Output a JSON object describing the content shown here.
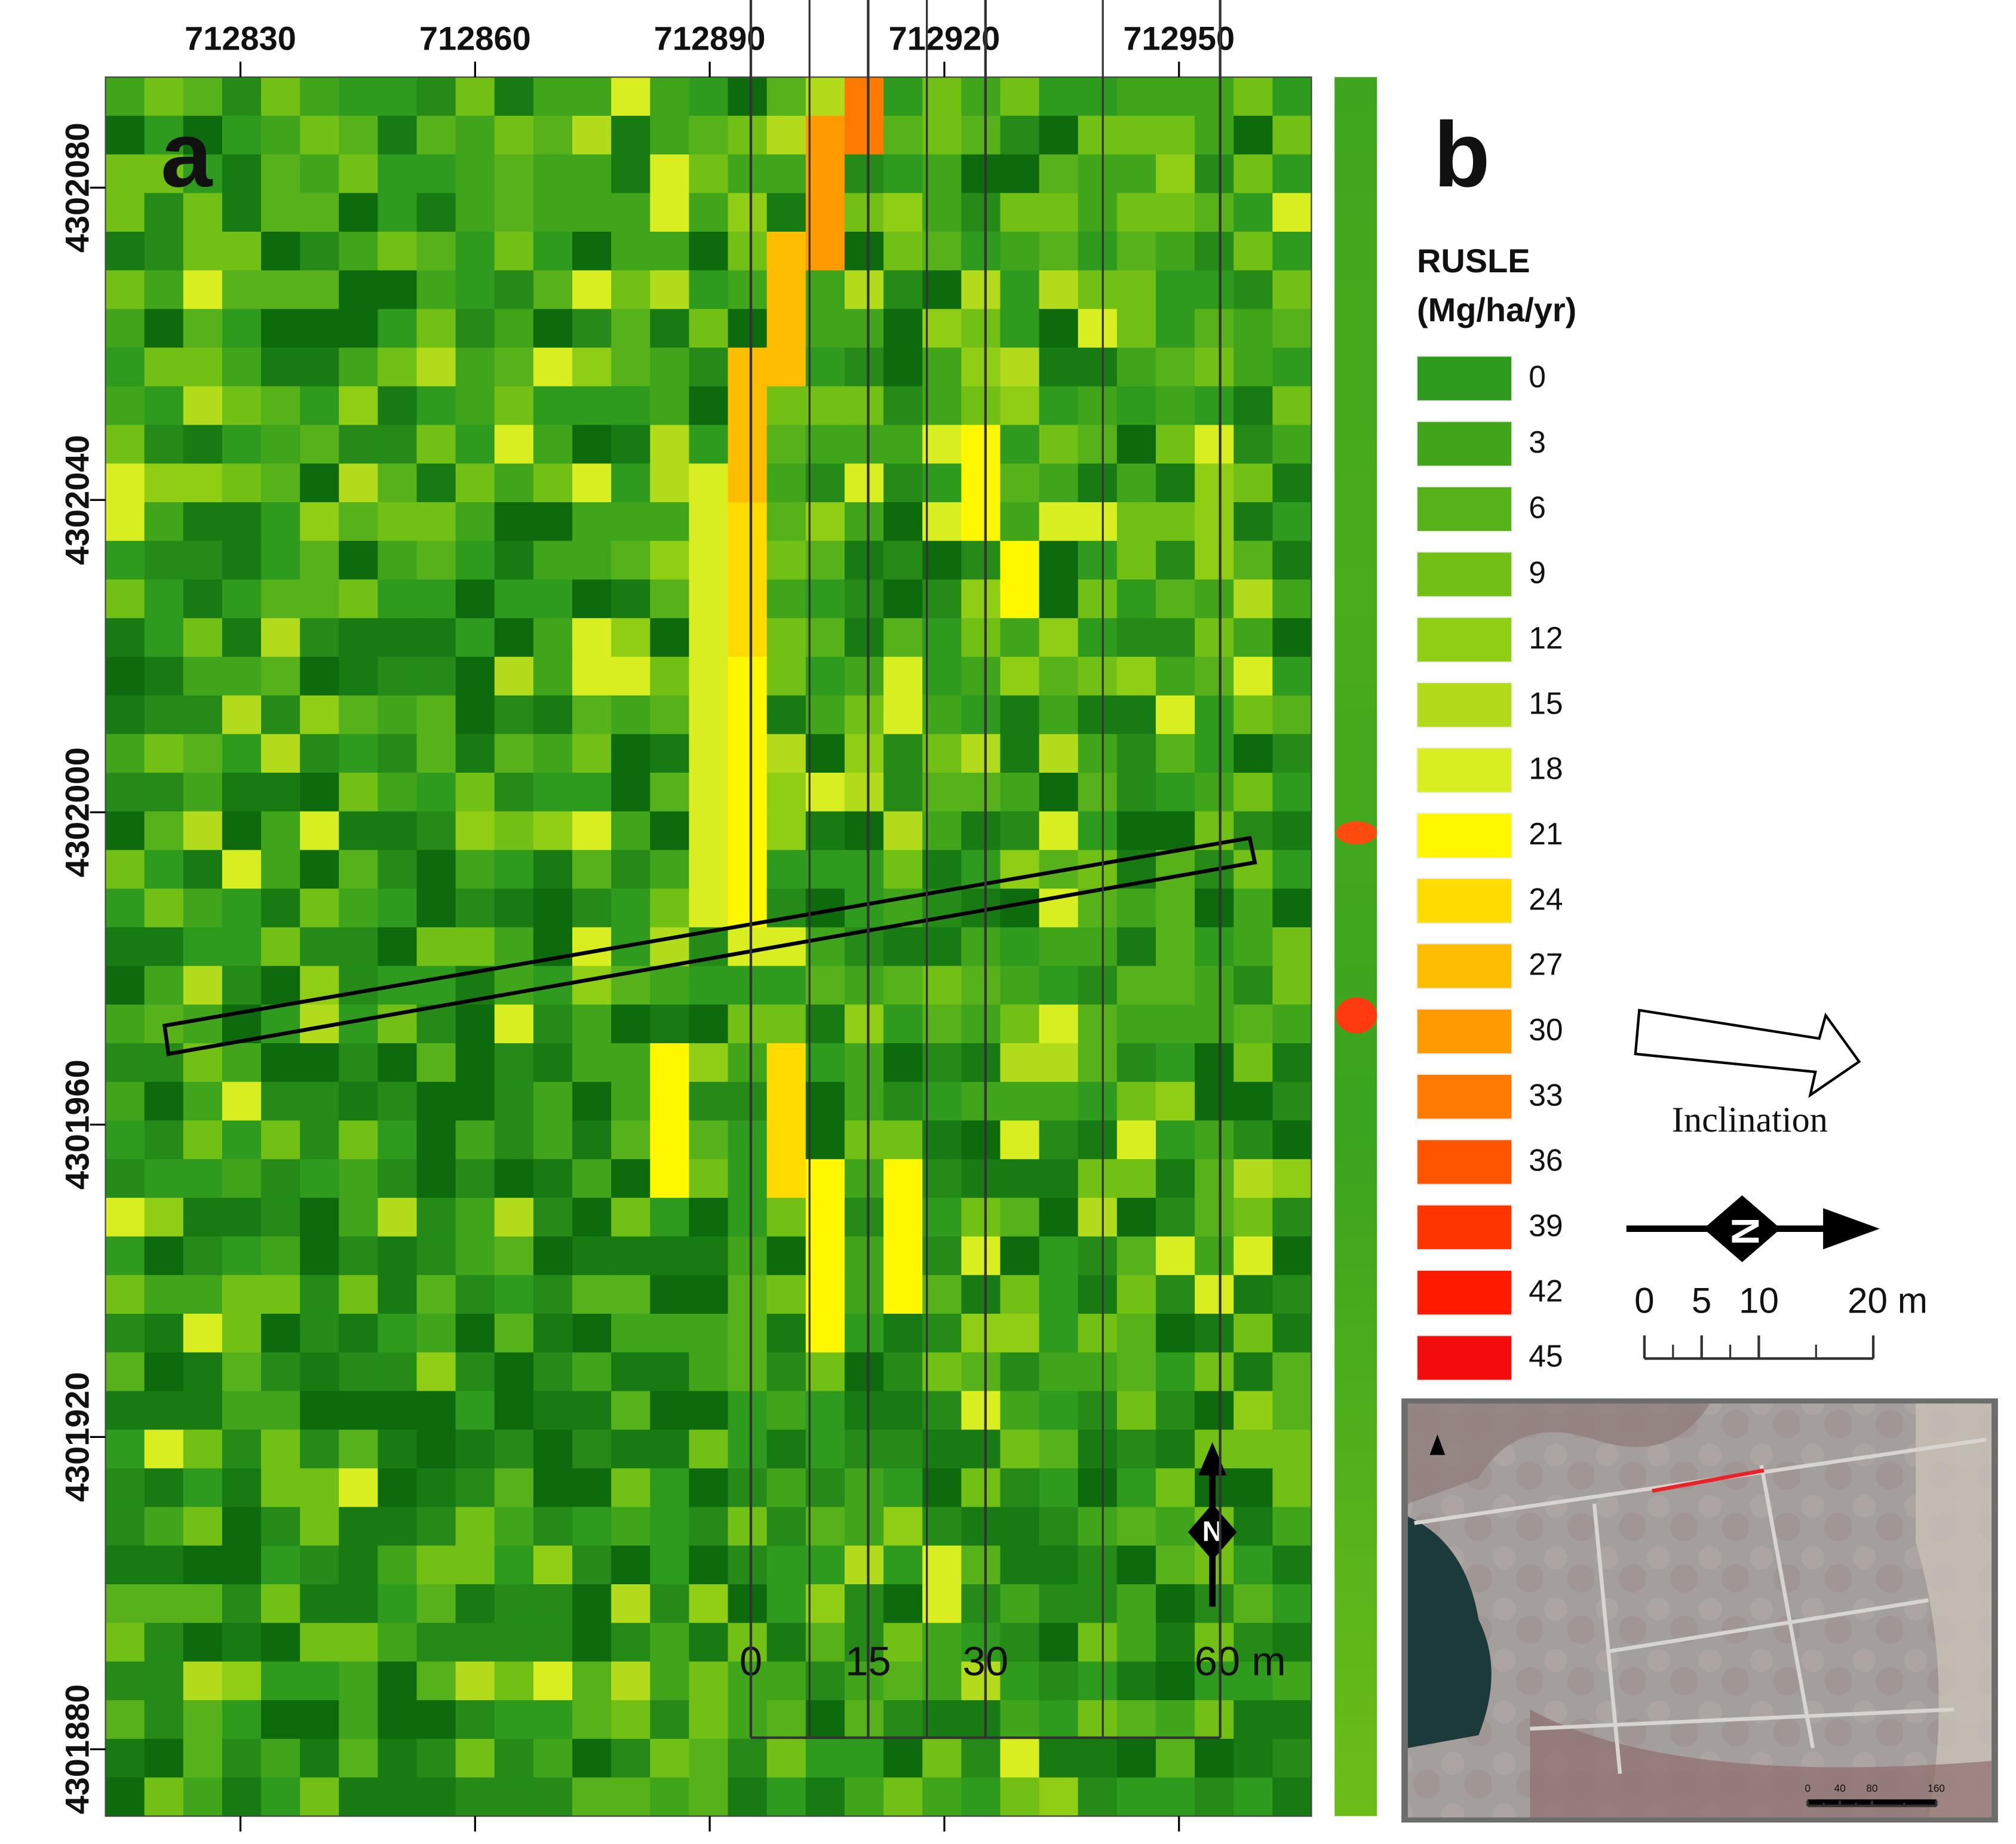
{
  "panel_a": {
    "label": "a",
    "x_ticks": [
      712830,
      712860,
      712890,
      712920,
      712950
    ],
    "y_ticks": [
      4302080,
      4302040,
      4302000,
      4301960,
      4301920,
      4301880
    ],
    "scale_bar": [
      0,
      15,
      30,
      {
        "value": 60,
        "label": "60 m"
      }
    ],
    "north_label": "N"
  },
  "panel_b": {
    "label": "b",
    "legend_title": "RUSLE",
    "legend_unit": "(Mg/ha/yr)",
    "legend": [
      {
        "value": 0,
        "color": "#2e9a1e"
      },
      {
        "value": 3,
        "color": "#40a51b"
      },
      {
        "value": 6,
        "color": "#57b11a"
      },
      {
        "value": 9,
        "color": "#72bf16"
      },
      {
        "value": 12,
        "color": "#90cd15"
      },
      {
        "value": 15,
        "color": "#b2dc1b"
      },
      {
        "value": 18,
        "color": "#d8ee20"
      },
      {
        "value": 21,
        "color": "#fff700"
      },
      {
        "value": 24,
        "color": "#ffdb00"
      },
      {
        "value": 27,
        "color": "#ffbd00"
      },
      {
        "value": 30,
        "color": "#ff9a00"
      },
      {
        "value": 33,
        "color": "#ff7a00"
      },
      {
        "value": 36,
        "color": "#ff5500"
      },
      {
        "value": 39,
        "color": "#ff3500"
      },
      {
        "value": 42,
        "color": "#ff1a00"
      },
      {
        "value": 45,
        "color": "#f20c0c"
      }
    ],
    "inclination": "Inclination",
    "north_label": "N",
    "scale_bar": [
      0,
      5,
      10,
      {
        "value": 20,
        "label": "20 m"
      }
    ],
    "inset_scale_bar": [
      0,
      40,
      80,
      160
    ]
  }
}
